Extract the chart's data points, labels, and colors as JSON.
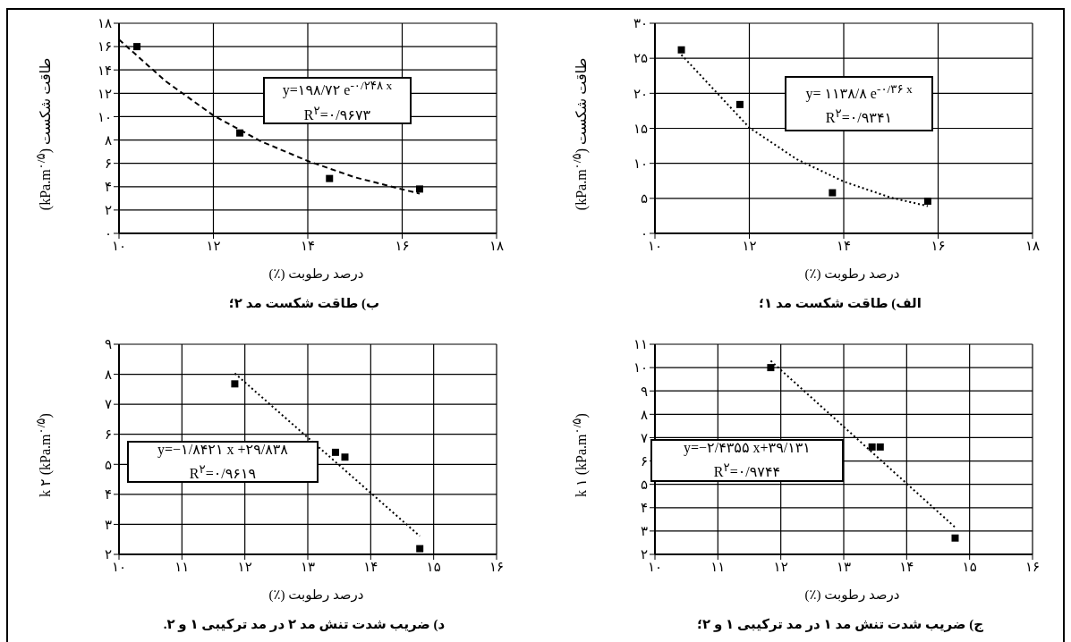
{
  "chart_data": [
    {
      "type": "scatter",
      "title": "الف) طاقت شکست مد ۱؛",
      "xlabel": "درصد رطوبت (٪)",
      "ylabel": "طاقت شکست (kPa.m$^{۰/۵}$)",
      "xlim": [
        10,
        18
      ],
      "xticks": [
        {
          "value": 10,
          "label": "۱۰"
        },
        {
          "value": 12,
          "label": "۱۲"
        },
        {
          "value": 14,
          "label": "۱۴"
        },
        {
          "value": 16,
          "label": "۱۶"
        },
        {
          "value": 18,
          "label": "۱۸"
        }
      ],
      "ylim": [
        0,
        30
      ],
      "yticks": [
        {
          "value": 0,
          "label": "۰"
        },
        {
          "value": 5,
          "label": "۵"
        },
        {
          "value": 10,
          "label": "۱۰"
        },
        {
          "value": 15,
          "label": "۱۵"
        },
        {
          "value": 20,
          "label": "۲۰"
        },
        {
          "value": 25,
          "label": "۲۵"
        },
        {
          "value": 30,
          "label": "۳۰"
        }
      ],
      "grid": true,
      "annotations": [
        "y= ۱۱۳۸/۸ e$^{-۰/۳۶ x}$",
        "R$^{۲}$=۰/۹۳۴۱"
      ],
      "series": [
        {
          "type": "scatter",
          "marker": "square",
          "color": "#000000",
          "x": [
            10.56,
            11.8,
            13.76,
            15.78
          ],
          "values": [
            26.2,
            18.4,
            5.8,
            4.6
          ]
        },
        {
          "type": "line",
          "marker": "none",
          "line_style": "dotted",
          "color": "#000000",
          "x": [
            10.56,
            12,
            13,
            14,
            15,
            15.78
          ],
          "values": [
            25.5,
            15.1,
            10.6,
            7.4,
            5.1,
            3.9
          ]
        }
      ]
    },
    {
      "type": "scatter",
      "title": "ب) طاقت شکست مد ۲؛",
      "xlabel": "درصد رطوبت (٪)",
      "ylabel": "طاقت شکست (kPa.m$^{۰/۵}$)",
      "xlim": [
        10,
        18
      ],
      "xticks": [
        {
          "value": 10,
          "label": "۱۰"
        },
        {
          "value": 12,
          "label": "۱۲"
        },
        {
          "value": 14,
          "label": "۱۴"
        },
        {
          "value": 16,
          "label": "۱۶"
        },
        {
          "value": 18,
          "label": "۱۸"
        }
      ],
      "ylim": [
        0,
        18
      ],
      "yticks": [
        {
          "value": 0,
          "label": "۰"
        },
        {
          "value": 2,
          "label": "۲"
        },
        {
          "value": 4,
          "label": "۴"
        },
        {
          "value": 6,
          "label": "۶"
        },
        {
          "value": 8,
          "label": "۸"
        },
        {
          "value": 10,
          "label": "۱۰"
        },
        {
          "value": 12,
          "label": "۱۲"
        },
        {
          "value": 14,
          "label": "۱۴"
        },
        {
          "value": 16,
          "label": "۱۶"
        },
        {
          "value": 18,
          "label": "۱۸"
        }
      ],
      "grid": true,
      "annotations": [
        "y=۱۹۸/۷۲ e$^{-۰/۲۴۸ x}$",
        "R$^{۲}$=۰/۹۶۷۳"
      ],
      "series": [
        {
          "type": "scatter",
          "marker": "square",
          "color": "#000000",
          "x": [
            10.38,
            12.56,
            14.46,
            16.37
          ],
          "values": [
            16.0,
            8.6,
            4.7,
            3.8
          ]
        },
        {
          "type": "line",
          "marker": "none",
          "line_style": "dashed",
          "color": "#000000",
          "x": [
            10,
            11,
            12,
            13,
            14,
            15,
            16.37
          ],
          "values": [
            16.6,
            13.0,
            10.1,
            7.9,
            6.2,
            4.8,
            3.4
          ]
        }
      ]
    },
    {
      "type": "scatter",
      "title": "ج) ضریب شدت تنش مد ۱ در مد ترکیبی ۱ و ۲؛",
      "xlabel": "درصد رطوبت (٪)",
      "ylabel": "k ۱ (kPa.m$^{۰/۵}$)",
      "xlim": [
        10,
        16
      ],
      "xticks": [
        {
          "value": 10,
          "label": "۱۰"
        },
        {
          "value": 11,
          "label": "۱۱"
        },
        {
          "value": 12,
          "label": "۱۲"
        },
        {
          "value": 13,
          "label": "۱۳"
        },
        {
          "value": 14,
          "label": "۱۴"
        },
        {
          "value": 15,
          "label": "۱۵"
        },
        {
          "value": 16,
          "label": "۱۶"
        }
      ],
      "ylim": [
        2,
        11
      ],
      "yticks": [
        {
          "value": 2,
          "label": "۲"
        },
        {
          "value": 3,
          "label": "۳"
        },
        {
          "value": 4,
          "label": "۴"
        },
        {
          "value": 5,
          "label": "۵"
        },
        {
          "value": 6,
          "label": "۶"
        },
        {
          "value": 7,
          "label": "۷"
        },
        {
          "value": 8,
          "label": "۸"
        },
        {
          "value": 9,
          "label": "۹"
        },
        {
          "value": 10,
          "label": "۱۰"
        },
        {
          "value": 11,
          "label": "۱۱"
        }
      ],
      "grid": true,
      "annotations": [
        "y=−۲/۴۳۵۵ x+۳۹/۱۳۱",
        "R$^{۲}$=۰/۹۷۴۴"
      ],
      "series": [
        {
          "type": "scatter",
          "marker": "square",
          "color": "#000000",
          "x": [
            11.84,
            13.45,
            13.58,
            14.77
          ],
          "values": [
            10.0,
            6.6,
            6.6,
            2.7
          ]
        },
        {
          "type": "line",
          "marker": "none",
          "line_style": "dotted",
          "color": "#000000",
          "x": [
            11.84,
            14.77
          ],
          "values": [
            10.29,
            3.16
          ]
        }
      ]
    },
    {
      "type": "scatter",
      "title": "د) ضریب شدت تنش مد ۲ در مد ترکیبی ۱ و ۲.",
      "xlabel": "درصد رطوبت (٪)",
      "ylabel": "k ۲ (kPa.m$^{۰/۵}$)",
      "xlim": [
        10,
        16
      ],
      "xticks": [
        {
          "value": 10,
          "label": "۱۰"
        },
        {
          "value": 11,
          "label": "۱۱"
        },
        {
          "value": 12,
          "label": "۱۲"
        },
        {
          "value": 13,
          "label": "۱۳"
        },
        {
          "value": 14,
          "label": "۱۴"
        },
        {
          "value": 15,
          "label": "۱۵"
        },
        {
          "value": 16,
          "label": "۱۶"
        }
      ],
      "ylim": [
        2,
        9
      ],
      "yticks": [
        {
          "value": 2,
          "label": "۲"
        },
        {
          "value": 3,
          "label": "۳"
        },
        {
          "value": 4,
          "label": "۴"
        },
        {
          "value": 5,
          "label": "۵"
        },
        {
          "value": 6,
          "label": "۶"
        },
        {
          "value": 7,
          "label": "۷"
        },
        {
          "value": 8,
          "label": "۸"
        },
        {
          "value": 9,
          "label": "۹"
        }
      ],
      "grid": true,
      "annotations": [
        "y=−۱/۸۴۲۱ x +۲۹/۸۳۸",
        "R$^{۲}$=۰/۹۶۱۹"
      ],
      "series": [
        {
          "type": "scatter",
          "marker": "square",
          "color": "#000000",
          "x": [
            11.84,
            13.44,
            13.59,
            14.78
          ],
          "values": [
            7.68,
            5.4,
            5.24,
            2.19
          ]
        },
        {
          "type": "line",
          "marker": "none",
          "line_style": "dotted",
          "color": "#000000",
          "x": [
            11.84,
            14.78
          ],
          "values": [
            8.03,
            2.61
          ]
        }
      ]
    }
  ]
}
